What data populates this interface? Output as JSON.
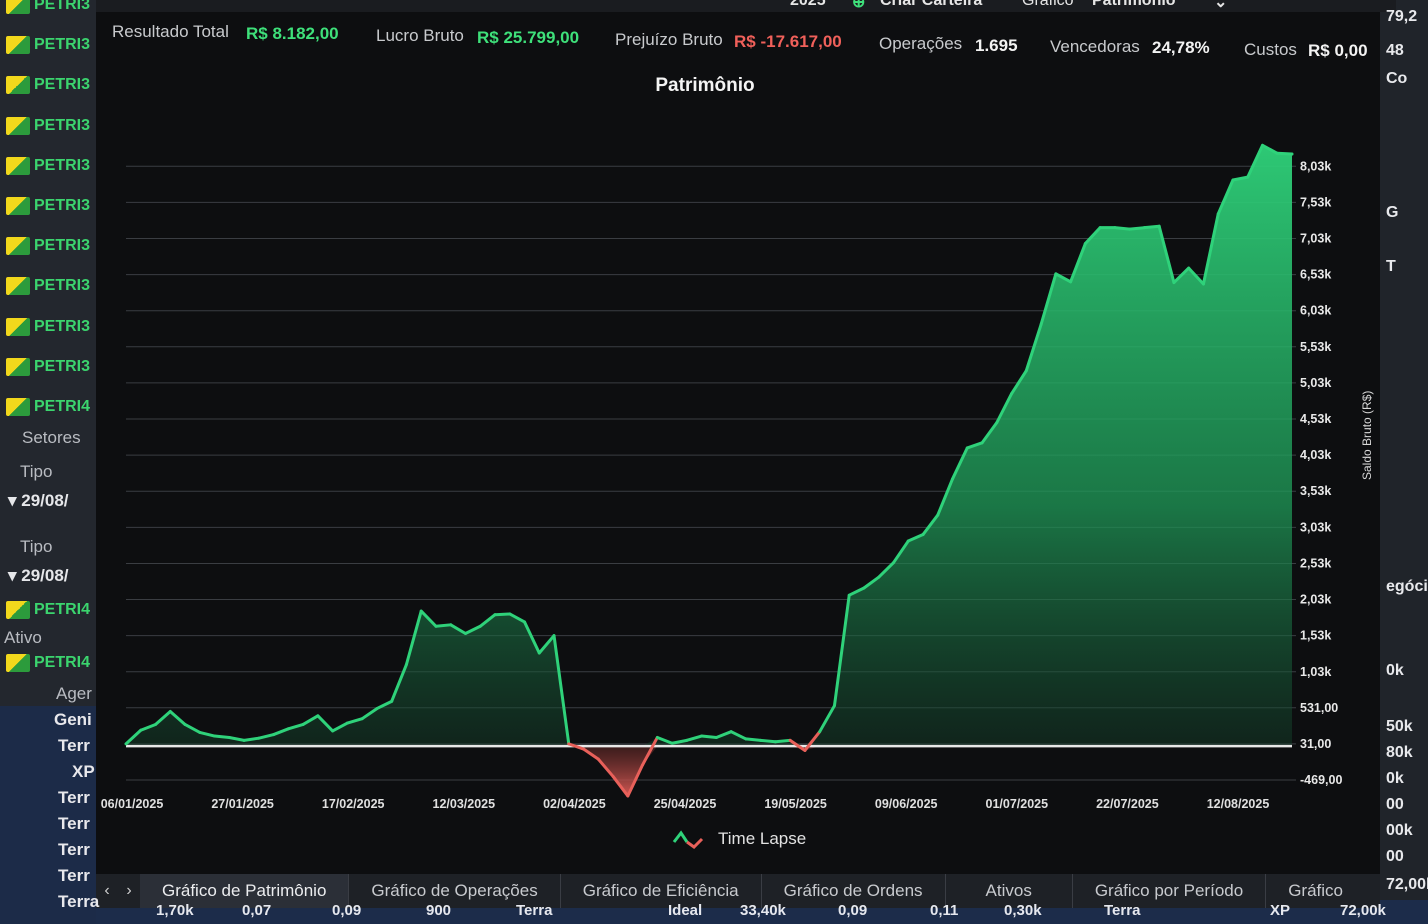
{
  "top_bar": {
    "year": "2025",
    "wallet_button": "Criar Carteira",
    "chart_label": "Gráfico",
    "chart_select": "Patrimônio"
  },
  "stats": {
    "resultado_total_label": "Resultado Total",
    "resultado_total_value": "R$ 8.182,00",
    "lucro_bruto_label": "Lucro Bruto",
    "lucro_bruto_value": "R$ 25.799,00",
    "prejuizo_bruto_label": "Prejuízo Bruto",
    "prejuizo_bruto_value": "R$ -17.617,00",
    "operacoes_label": "Operações",
    "operacoes_value": "1.695",
    "vencedoras_label": "Vencedoras",
    "vencedoras_value": "24,78%",
    "custos_label": "Custos",
    "custos_value": "R$ 0,00"
  },
  "chart_data": {
    "type": "area",
    "title": "Patrimônio",
    "ylabel": "Saldo Bruto (R$)",
    "y_ticks": [
      "8,03k",
      "7,53k",
      "7,03k",
      "6,53k",
      "6,03k",
      "5,53k",
      "5,03k",
      "4,53k",
      "4,03k",
      "3,53k",
      "3,03k",
      "2,53k",
      "2,03k",
      "1,53k",
      "1,03k",
      "531,00",
      "31,00",
      "-469,00"
    ],
    "ylim": [
      -469,
      8200
    ],
    "x_ticks": [
      "06/01/2025",
      "27/01/2025",
      "17/02/2025",
      "12/03/2025",
      "02/04/2025",
      "25/04/2025",
      "19/05/2025",
      "09/06/2025",
      "01/07/2025",
      "22/07/2025",
      "12/08/2025"
    ],
    "legend": "Time Lapse",
    "colors": {
      "positive": "#2fd27a",
      "negative": "#e8605a"
    },
    "series": [
      {
        "values": [
          31,
          220,
          300,
          480,
          300,
          190,
          140,
          120,
          80,
          110,
          160,
          240,
          300,
          420,
          210,
          320,
          380,
          520,
          620,
          1130,
          1870,
          1660,
          1680,
          1560,
          1660,
          1820,
          1830,
          1720,
          1290,
          1530,
          31,
          -40,
          -180,
          -420,
          -690,
          -260,
          120,
          40,
          80,
          140,
          120,
          200,
          100,
          80,
          60,
          80,
          -60,
          200,
          560,
          2090,
          2190,
          2340,
          2540,
          2840,
          2930,
          3200,
          3700,
          4130,
          4200,
          4480,
          4880,
          5200,
          5840,
          6540,
          6430,
          6960,
          7180,
          7180,
          7160,
          7180,
          7200,
          6420,
          6620,
          6400,
          7370,
          7840,
          7880,
          8320,
          8210,
          8200
        ]
      }
    ]
  },
  "tabs": [
    "Gráfico de Patrimônio",
    "Gráfico de Operações",
    "Gráfico de Eficiência",
    "Gráfico de Ordens",
    "Ativos",
    "Gráfico por Período",
    "Gráfico"
  ],
  "left_panel": {
    "tickers": [
      "PETRI3",
      "PETRI3",
      "PETRI3",
      "PETRI3",
      "PETRI3",
      "PETRI3",
      "PETRI3",
      "PETRI3",
      "PETRI3",
      "PETRI3",
      "PETRI4"
    ],
    "setores": "Setores",
    "tipo": "Tipo",
    "date1": "29/08/",
    "tipo2": "Tipo",
    "date2": "29/08/",
    "ticker_b1": "PETRI4",
    "ativo": "Ativo",
    "ticker_b2": "PETRI4",
    "ager": "Ager",
    "table_rows": [
      "Geni",
      "Terr",
      "XP",
      "Terr",
      "Terr",
      "Terr",
      "Terr",
      "Terra"
    ]
  },
  "right_panel": {
    "texts": [
      "79,2",
      "48",
      "Co",
      "G",
      "T",
      "egóci",
      "0k",
      "50k",
      "80k",
      "0k",
      "00",
      "00k",
      "00",
      "72,00k"
    ]
  },
  "bottom_strip": {
    "texts": [
      "1,70k",
      "0,07",
      "0,09",
      "900",
      "Terra",
      "Ideal",
      "33,40k",
      "0,09",
      "0,11",
      "0,30k",
      "Terra",
      "XP",
      "72,00k"
    ]
  }
}
